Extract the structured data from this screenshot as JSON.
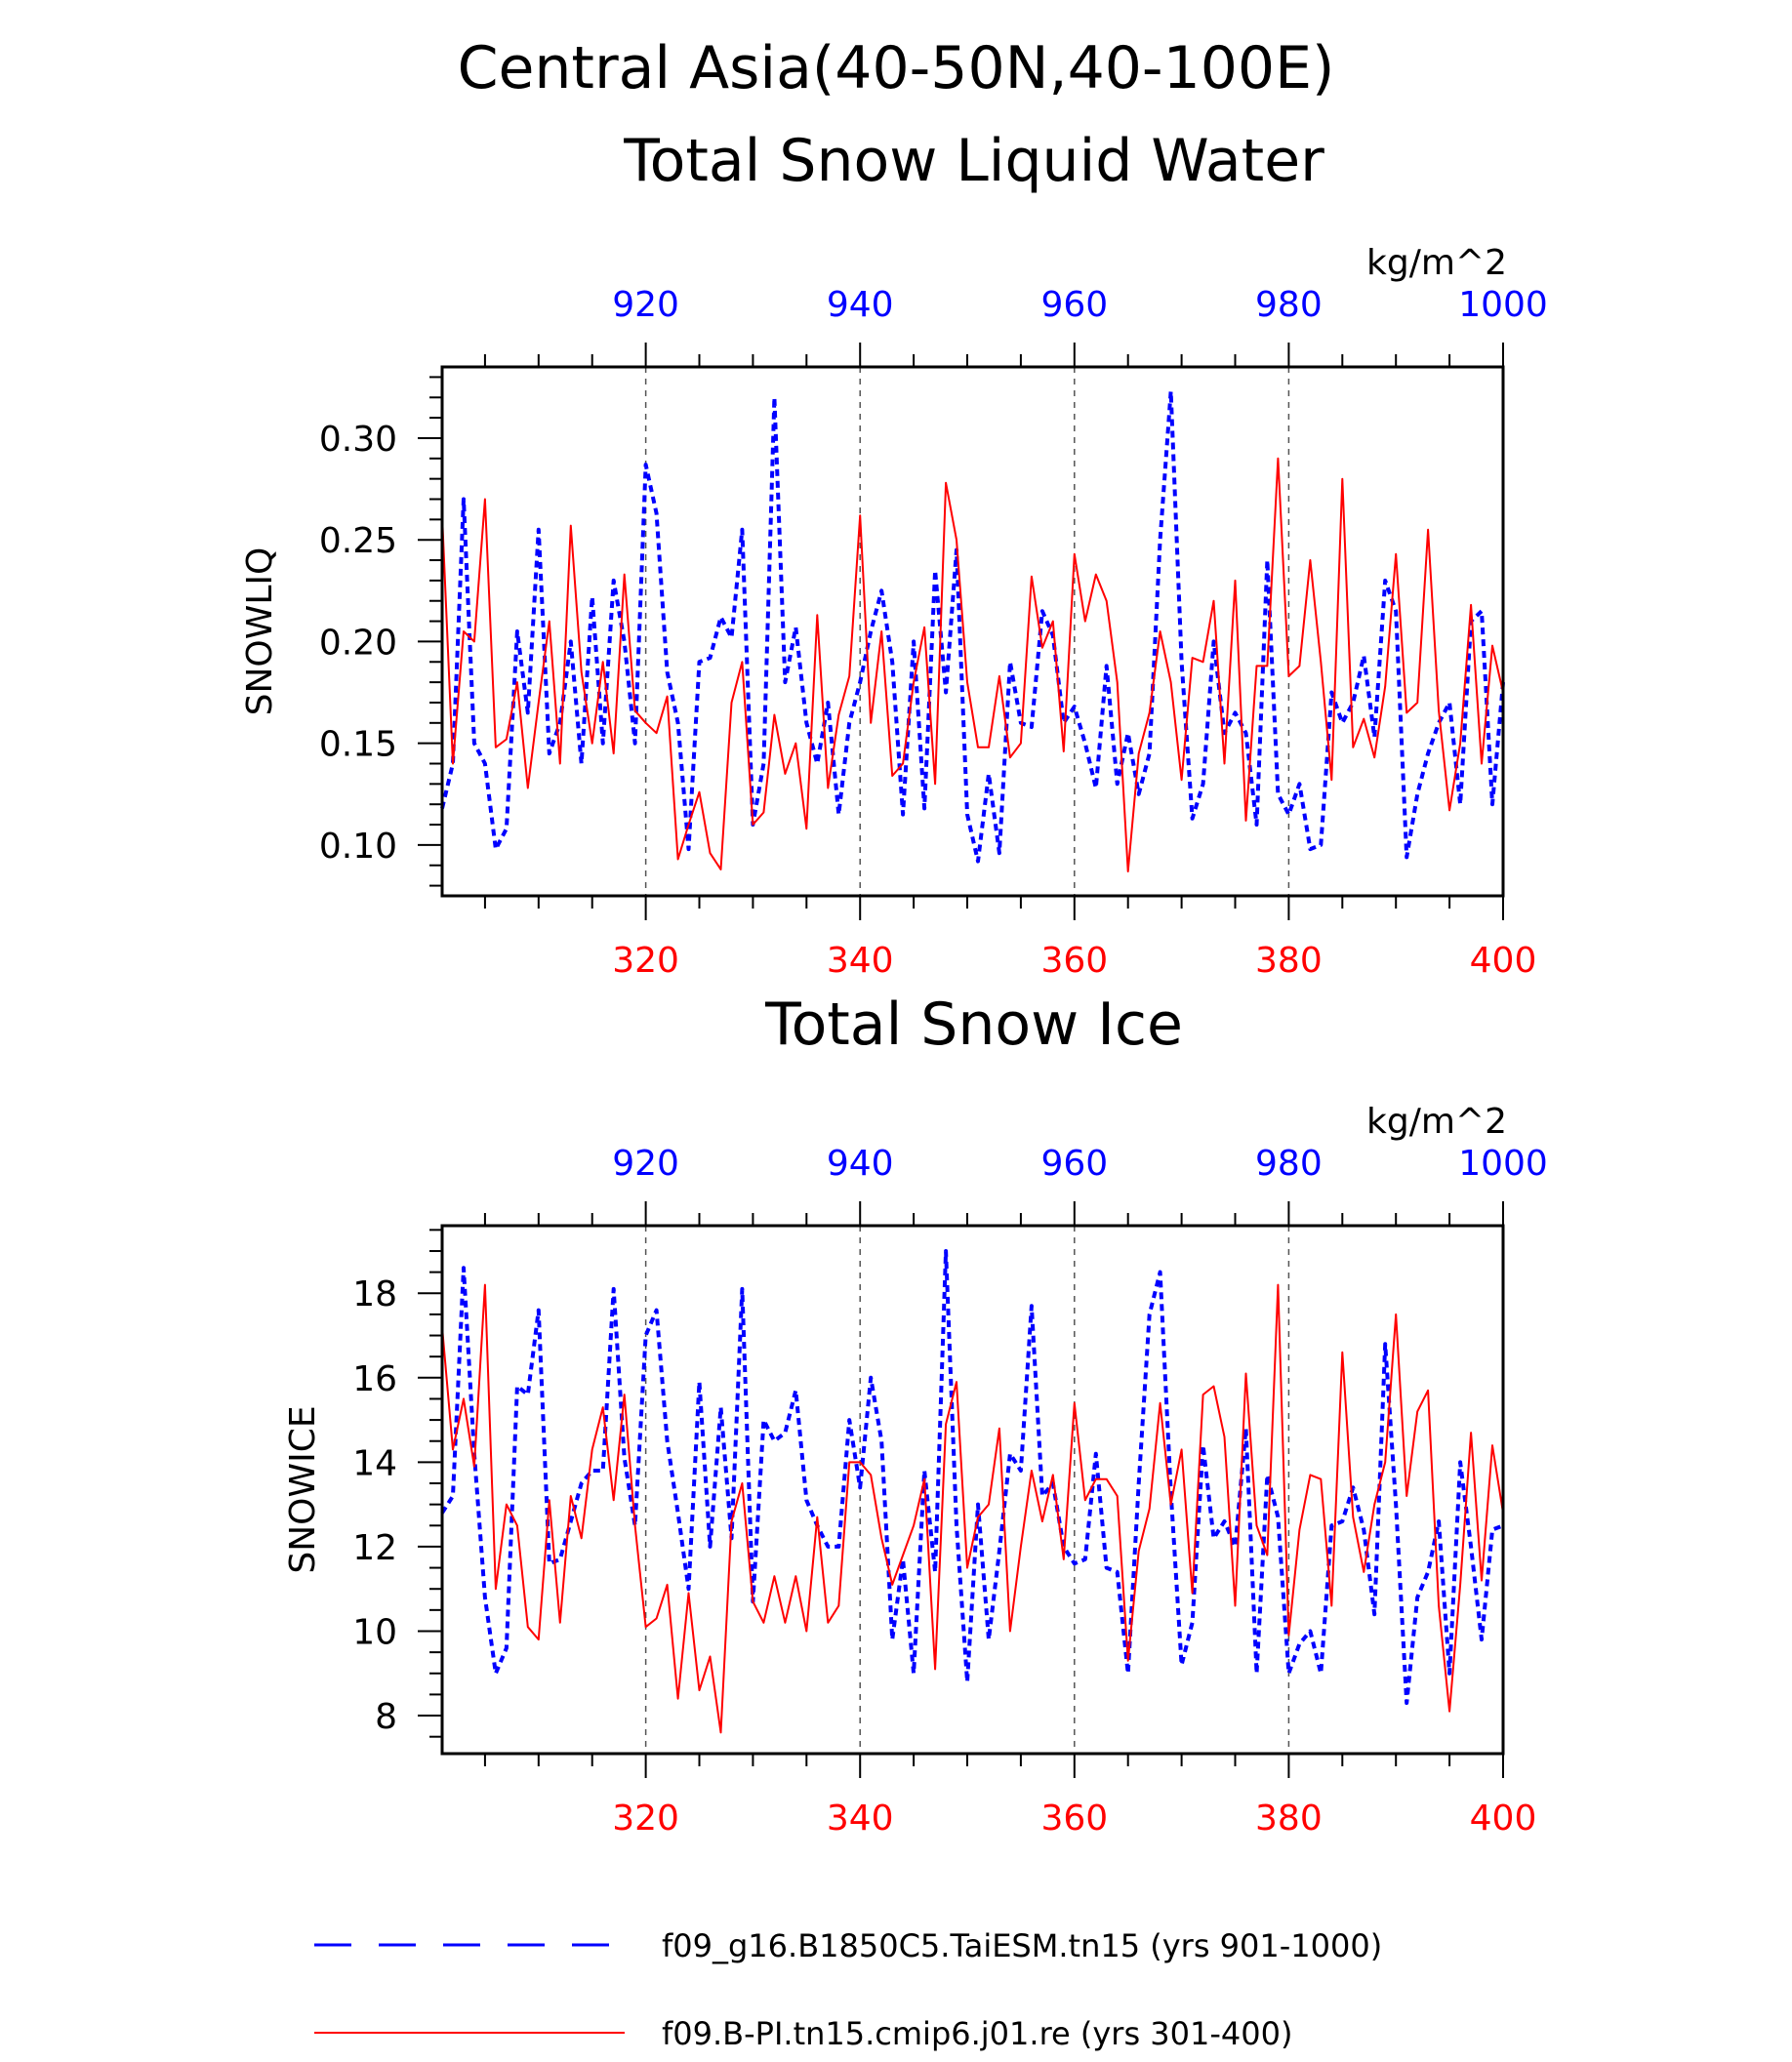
{
  "figure": {
    "title_line1": "Central Asia(40-50N,40-100E)",
    "title_line2": "Total Snow Liquid Water",
    "panel2_title": "Total Snow Ice"
  },
  "colors": {
    "model_a": "#0000ff",
    "model_b": "#ff0000",
    "axis": "#000000",
    "grid": "#555555"
  },
  "legend": [
    {
      "label": "f09_g16.B1850C5.TaiESM.tn15 (yrs 901-1000)",
      "color": "#0000ff",
      "style": "dashed"
    },
    {
      "label": "f09.B-PI.tn15.cmip6.j01.re (yrs 301-400)",
      "color": "#ff0000",
      "style": "solid"
    }
  ],
  "chart_data": [
    {
      "type": "line",
      "title": "Total Snow Liquid Water",
      "ylabel": "SNOWLIQ",
      "units": "kg/m^2",
      "ylim": [
        0.075,
        0.335
      ],
      "y_ticks": [
        "0.10",
        "0.15",
        "0.20",
        "0.25",
        "0.30"
      ],
      "y_tick_values": [
        0.1,
        0.15,
        0.2,
        0.25,
        0.3
      ],
      "bottom_axis": {
        "range": [
          301,
          400
        ],
        "ticks": [
          "320",
          "340",
          "360",
          "380",
          "400"
        ],
        "tick_values": [
          320,
          340,
          360,
          380,
          400
        ]
      },
      "top_axis": {
        "range": [
          901,
          1000
        ],
        "ticks": [
          "920",
          "940",
          "960",
          "980",
          "1000"
        ],
        "tick_values": [
          920,
          940,
          960,
          980,
          1000
        ]
      },
      "grid": "vertical dashed at labeled ticks",
      "series": [
        {
          "name": "f09_g16.B1850C5.TaiESM.tn15 (yrs 901-1000)",
          "axis": "top",
          "x_start": 901,
          "color": "#0000ff",
          "style": "dashed",
          "values": [
            0.118,
            0.14,
            0.27,
            0.15,
            0.14,
            0.098,
            0.108,
            0.205,
            0.165,
            0.255,
            0.145,
            0.16,
            0.2,
            0.14,
            0.222,
            0.15,
            0.23,
            0.2,
            0.15,
            0.287,
            0.263,
            0.185,
            0.16,
            0.098,
            0.19,
            0.192,
            0.212,
            0.202,
            0.255,
            0.11,
            0.14,
            0.32,
            0.18,
            0.207,
            0.16,
            0.14,
            0.17,
            0.115,
            0.16,
            0.18,
            0.205,
            0.225,
            0.19,
            0.115,
            0.2,
            0.118,
            0.235,
            0.175,
            0.245,
            0.115,
            0.092,
            0.135,
            0.096,
            0.19,
            0.16,
            0.158,
            0.215,
            0.203,
            0.16,
            0.168,
            0.15,
            0.128,
            0.188,
            0.13,
            0.155,
            0.125,
            0.145,
            0.25,
            0.323,
            0.19,
            0.113,
            0.13,
            0.2,
            0.155,
            0.165,
            0.155,
            0.11,
            0.24,
            0.125,
            0.115,
            0.13,
            0.098,
            0.1,
            0.175,
            0.16,
            0.17,
            0.193,
            0.153,
            0.23,
            0.215,
            0.094,
            0.125,
            0.145,
            0.16,
            0.17,
            0.12,
            0.21,
            0.215,
            0.12,
            0.18
          ]
        },
        {
          "name": "f09.B-PI.tn15.cmip6.j01.re (yrs 301-400)",
          "axis": "bottom",
          "x_start": 301,
          "color": "#ff0000",
          "style": "solid",
          "values": [
            0.262,
            0.14,
            0.205,
            0.2,
            0.27,
            0.148,
            0.152,
            0.18,
            0.128,
            0.17,
            0.21,
            0.14,
            0.257,
            0.185,
            0.15,
            0.19,
            0.145,
            0.233,
            0.166,
            0.16,
            0.155,
            0.173,
            0.093,
            0.11,
            0.126,
            0.096,
            0.088,
            0.17,
            0.19,
            0.11,
            0.116,
            0.164,
            0.135,
            0.15,
            0.108,
            0.213,
            0.128,
            0.164,
            0.183,
            0.262,
            0.16,
            0.205,
            0.134,
            0.14,
            0.18,
            0.207,
            0.13,
            0.278,
            0.25,
            0.18,
            0.148,
            0.148,
            0.183,
            0.143,
            0.15,
            0.232,
            0.197,
            0.21,
            0.146,
            0.243,
            0.21,
            0.233,
            0.22,
            0.18,
            0.087,
            0.145,
            0.165,
            0.205,
            0.18,
            0.132,
            0.192,
            0.19,
            0.22,
            0.14,
            0.23,
            0.112,
            0.188,
            0.188,
            0.29,
            0.183,
            0.188,
            0.24,
            0.19,
            0.132,
            0.28,
            0.148,
            0.162,
            0.143,
            0.178,
            0.243,
            0.165,
            0.17,
            0.255,
            0.166,
            0.117,
            0.15,
            0.218,
            0.14,
            0.198,
            0.175
          ]
        }
      ]
    },
    {
      "type": "line",
      "title": "Total Snow Ice",
      "ylabel": "SNOWICE",
      "units": "kg/m^2",
      "ylim": [
        7.1,
        19.6
      ],
      "y_ticks": [
        "8",
        "10",
        "12",
        "14",
        "16",
        "18"
      ],
      "y_tick_values": [
        8,
        10,
        12,
        14,
        16,
        18
      ],
      "bottom_axis": {
        "range": [
          301,
          400
        ],
        "ticks": [
          "320",
          "340",
          "360",
          "380",
          "400"
        ],
        "tick_values": [
          320,
          340,
          360,
          380,
          400
        ]
      },
      "top_axis": {
        "range": [
          901,
          1000
        ],
        "ticks": [
          "920",
          "940",
          "960",
          "980",
          "1000"
        ],
        "tick_values": [
          920,
          940,
          960,
          980,
          1000
        ]
      },
      "grid": "vertical dashed at labeled ticks",
      "series": [
        {
          "name": "f09_g16.B1850C5.TaiESM.tn15 (yrs 901-1000)",
          "axis": "top",
          "x_start": 901,
          "color": "#0000ff",
          "style": "dashed",
          "values": [
            12.8,
            13.2,
            18.6,
            14.2,
            10.8,
            9.0,
            9.6,
            15.8,
            15.6,
            17.6,
            11.6,
            11.7,
            12.6,
            13.5,
            13.8,
            13.8,
            18.1,
            14.1,
            12.5,
            17.0,
            17.6,
            14.5,
            12.8,
            11.0,
            15.9,
            12.0,
            15.3,
            12.2,
            18.1,
            10.7,
            15.0,
            14.5,
            14.7,
            15.7,
            13.1,
            12.5,
            12.0,
            12.0,
            15.0,
            13.4,
            16.0,
            14.5,
            9.8,
            11.7,
            9.0,
            13.8,
            11.4,
            19.0,
            12.5,
            8.8,
            13.0,
            9.8,
            11.9,
            14.2,
            13.8,
            17.7,
            13.2,
            13.5,
            12.0,
            11.6,
            11.7,
            14.2,
            11.5,
            11.4,
            9.0,
            13.5,
            17.5,
            18.5,
            13.3,
            9.2,
            10.2,
            14.4,
            12.2,
            12.6,
            12.0,
            14.8,
            9.0,
            13.7,
            12.7,
            9.0,
            9.7,
            10.0,
            9.0,
            12.5,
            12.6,
            13.4,
            12.4,
            10.4,
            16.8,
            13.0,
            8.3,
            10.8,
            11.4,
            12.6,
            9.0,
            14.0,
            12.0,
            9.8,
            12.4,
            12.5
          ]
        },
        {
          "name": "f09.B-PI.tn15.cmip6.j01.re (yrs 301-400)",
          "axis": "bottom",
          "x_start": 301,
          "color": "#ff0000",
          "style": "solid",
          "values": [
            17.2,
            14.3,
            15.5,
            13.9,
            18.2,
            11.0,
            13.0,
            12.5,
            10.1,
            9.8,
            13.1,
            10.2,
            13.2,
            12.2,
            14.3,
            15.3,
            13.1,
            15.6,
            12.5,
            10.1,
            10.3,
            11.1,
            8.4,
            10.9,
            8.6,
            9.4,
            7.6,
            12.6,
            13.5,
            10.7,
            10.2,
            11.3,
            10.2,
            11.3,
            10.0,
            12.7,
            10.2,
            10.6,
            14.0,
            14.0,
            13.7,
            12.2,
            11.1,
            11.8,
            12.5,
            13.6,
            9.1,
            14.9,
            15.9,
            11.5,
            12.7,
            13.0,
            14.8,
            10.0,
            12.0,
            13.8,
            12.6,
            13.7,
            11.7,
            15.4,
            13.1,
            13.6,
            13.6,
            13.2,
            9.3,
            11.9,
            12.9,
            15.4,
            13.0,
            14.3,
            10.9,
            15.6,
            15.8,
            14.6,
            10.6,
            16.1,
            12.5,
            11.8,
            18.2,
            9.9,
            12.4,
            13.7,
            13.6,
            10.6,
            16.6,
            12.7,
            11.4,
            13.0,
            14.0,
            17.5,
            13.2,
            15.2,
            15.7,
            10.6,
            8.1,
            11.1,
            14.7,
            11.2,
            14.4,
            12.8
          ]
        }
      ]
    }
  ]
}
